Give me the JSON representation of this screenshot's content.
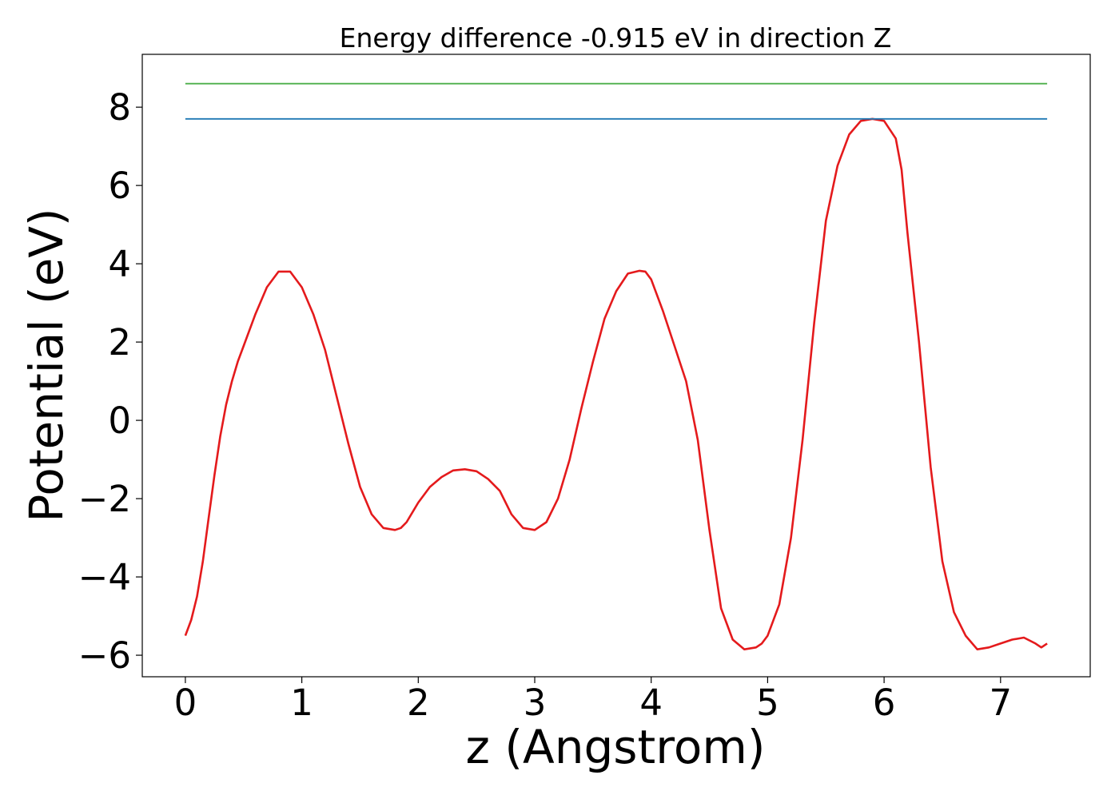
{
  "chart_data": {
    "type": "line",
    "title": "Energy difference -0.915 eV in direction Z",
    "xlabel": "z (Angstrom)",
    "ylabel": "Potential (eV)",
    "xlim": [
      -0.37,
      7.77
    ],
    "ylim": [
      -6.55,
      9.35
    ],
    "xticks": [
      0,
      1,
      2,
      3,
      4,
      5,
      6,
      7
    ],
    "xtick_labels": [
      "0",
      "1",
      "2",
      "3",
      "4",
      "5",
      "6",
      "7"
    ],
    "yticks": [
      -6,
      -4,
      -2,
      0,
      2,
      4,
      6,
      8
    ],
    "ytick_labels": [
      "−6",
      "−4",
      "−2",
      "0",
      "2",
      "4",
      "6",
      "8"
    ],
    "grid": false,
    "series": [
      {
        "color": "#e41a1c",
        "x": [
          0,
          0.05,
          0.1,
          0.15,
          0.2,
          0.25,
          0.3,
          0.35,
          0.4,
          0.45,
          0.5,
          0.6,
          0.7,
          0.8,
          0.9,
          1.0,
          1.1,
          1.2,
          1.3,
          1.4,
          1.5,
          1.6,
          1.7,
          1.8,
          1.85,
          1.9,
          2.0,
          2.1,
          2.2,
          2.3,
          2.4,
          2.5,
          2.6,
          2.7,
          2.8,
          2.9,
          3.0,
          3.1,
          3.2,
          3.3,
          3.4,
          3.5,
          3.6,
          3.7,
          3.8,
          3.9,
          3.95,
          4.0,
          4.1,
          4.2,
          4.3,
          4.4,
          4.5,
          4.6,
          4.7,
          4.8,
          4.9,
          4.95,
          5.0,
          5.1,
          5.2,
          5.3,
          5.4,
          5.5,
          5.6,
          5.7,
          5.8,
          5.9,
          6.0,
          6.1,
          6.15,
          6.2,
          6.3,
          6.4,
          6.5,
          6.6,
          6.7,
          6.8,
          6.9,
          7.0,
          7.1,
          7.2,
          7.3,
          7.35,
          7.4
        ],
        "y": [
          -5.5,
          -5.1,
          -4.5,
          -3.6,
          -2.5,
          -1.4,
          -0.4,
          0.4,
          1.0,
          1.5,
          1.9,
          2.7,
          3.4,
          3.8,
          3.8,
          3.4,
          2.7,
          1.8,
          0.6,
          -0.6,
          -1.7,
          -2.4,
          -2.75,
          -2.8,
          -2.75,
          -2.6,
          -2.1,
          -1.7,
          -1.45,
          -1.28,
          -1.25,
          -1.3,
          -1.5,
          -1.8,
          -2.4,
          -2.75,
          -2.8,
          -2.6,
          -2.0,
          -1.0,
          0.3,
          1.5,
          2.6,
          3.3,
          3.75,
          3.82,
          3.8,
          3.6,
          2.8,
          1.9,
          1.0,
          -0.5,
          -2.8,
          -4.8,
          -5.6,
          -5.85,
          -5.8,
          -5.7,
          -5.5,
          -4.7,
          -3.0,
          -0.5,
          2.5,
          5.1,
          6.5,
          7.3,
          7.65,
          7.7,
          7.65,
          7.2,
          6.4,
          4.8,
          2.0,
          -1.2,
          -3.6,
          -4.9,
          -5.5,
          -5.85,
          -5.8,
          -5.7,
          -5.6,
          -5.55,
          -5.7,
          -5.8,
          -5.7
        ]
      },
      {
        "color": "#1f78b4",
        "x": [
          0,
          7.4
        ],
        "y": [
          7.7,
          7.7
        ]
      },
      {
        "color": "#4daf4a",
        "x": [
          0,
          7.4
        ],
        "y": [
          8.6,
          8.6
        ]
      }
    ]
  }
}
